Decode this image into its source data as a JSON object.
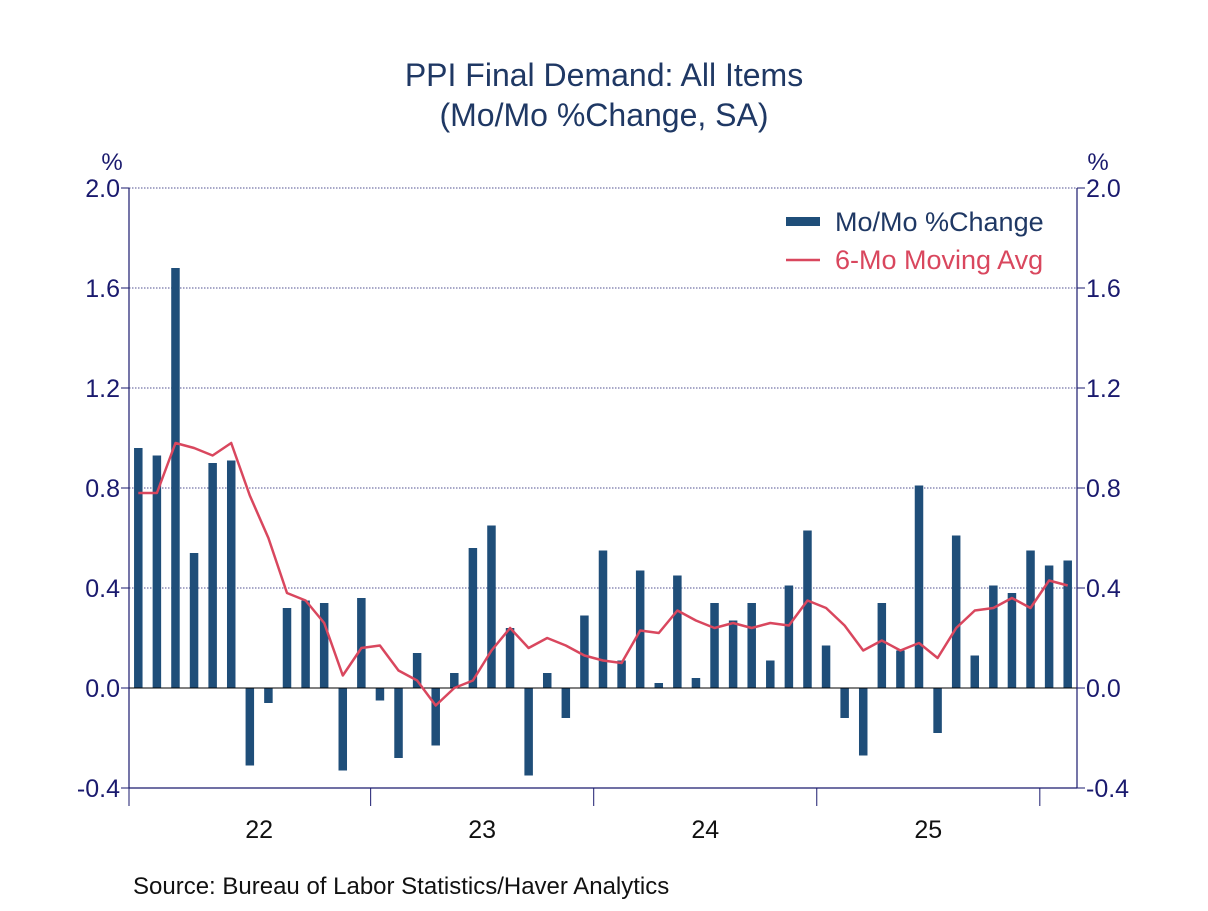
{
  "chart_data": {
    "type": "bar",
    "title": "PPI Final Demand: All Items",
    "subtitle": "(Mo/Mo %Change, SA)",
    "ylabel_left": "%",
    "ylabel_right": "%",
    "source": "Source:  Bureau of Labor Statistics/Haver Analytics",
    "ylim": [
      -0.4,
      2.0
    ],
    "yticks": [
      "2.0",
      "1.6",
      "1.2",
      "0.8",
      "0.4",
      "0.0",
      "-0.4"
    ],
    "ytick_values": [
      2.0,
      1.6,
      1.2,
      0.8,
      0.4,
      0.0,
      -0.4
    ],
    "year_labels": [
      "22",
      "23",
      "24",
      "25"
    ],
    "grid": true,
    "legend_position": "top-right",
    "start_month": "2021-12",
    "colors": {
      "bars": "#1f4e79",
      "line": "#d9475e",
      "axis": "#1a1a6e",
      "text": "#1a1a6e",
      "title": "#1f3864"
    },
    "series": [
      {
        "name": "Mo/Mo %Change",
        "kind": "bar",
        "values": [
          0.96,
          0.93,
          1.68,
          0.54,
          0.9,
          0.91,
          -0.31,
          -0.06,
          0.32,
          0.35,
          0.34,
          -0.33,
          0.36,
          -0.05,
          -0.28,
          0.14,
          -0.23,
          0.06,
          0.56,
          0.65,
          0.24,
          -0.35,
          0.06,
          -0.12,
          0.29,
          0.55,
          0.11,
          0.47,
          0.02,
          0.45,
          0.04,
          0.34,
          0.27,
          0.34,
          0.11,
          0.41,
          0.63,
          0.17,
          -0.12,
          -0.27,
          0.34,
          0.15,
          0.81,
          -0.18,
          0.61,
          0.13,
          0.41,
          0.38,
          0.55,
          0.49,
          0.51
        ]
      },
      {
        "name": "6-Mo Moving Avg",
        "kind": "line",
        "values": [
          0.78,
          0.78,
          0.98,
          0.96,
          0.93,
          0.98,
          0.77,
          0.6,
          0.38,
          0.35,
          0.26,
          0.05,
          0.16,
          0.17,
          0.07,
          0.03,
          -0.07,
          0.0,
          0.03,
          0.15,
          0.24,
          0.16,
          0.2,
          0.17,
          0.13,
          0.11,
          0.1,
          0.23,
          0.22,
          0.31,
          0.27,
          0.24,
          0.26,
          0.24,
          0.26,
          0.25,
          0.35,
          0.32,
          0.25,
          0.15,
          0.19,
          0.15,
          0.18,
          0.12,
          0.24,
          0.31,
          0.32,
          0.36,
          0.32,
          0.43,
          0.41
        ]
      }
    ]
  }
}
